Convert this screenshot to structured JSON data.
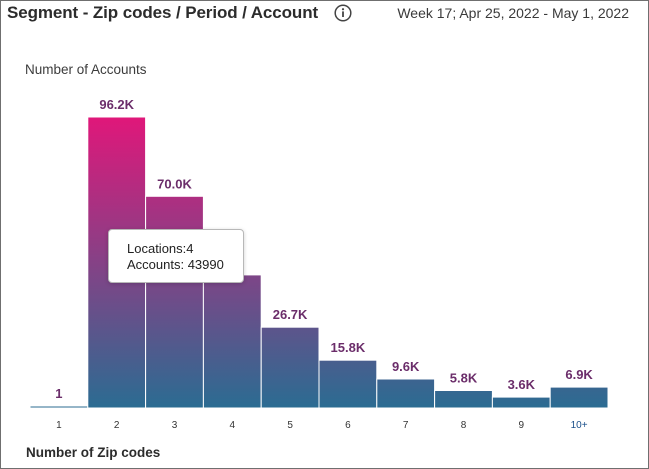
{
  "header": {
    "title": "Segment - Zip codes / Period / Account",
    "date_range": "Week 17; Apr 25, 2022 - May 1, 2022",
    "info_icon": "info-icon"
  },
  "tooltip": {
    "line1": "Locations:4",
    "line2": "Accounts: 43990"
  },
  "colors": {
    "bar_top": "#e0177a",
    "bar_bottom": "#2b6c92",
    "value_label": "#6b2d6a",
    "tick_last": "#1a4f8a"
  },
  "chart_data": {
    "type": "bar",
    "xlabel": "Number of Zip codes",
    "ylabel": "Number of Accounts",
    "categories": [
      "1",
      "2",
      "3",
      "4",
      "5",
      "6",
      "7",
      "8",
      "9",
      "10+"
    ],
    "values": [
      1,
      96200,
      70000,
      43990,
      26700,
      15800,
      9600,
      5800,
      3600,
      6900
    ],
    "value_labels": [
      "1",
      "96.2K",
      "70.0K",
      "",
      "26.7K",
      "15.8K",
      "9.6K",
      "5.8K",
      "3.6K",
      "6.9K"
    ],
    "ylim": [
      0,
      96200
    ],
    "grid": false,
    "legend": "none"
  }
}
